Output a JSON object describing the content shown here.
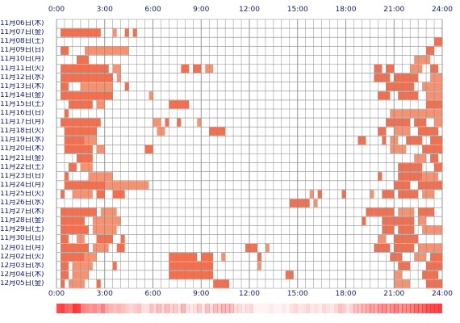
{
  "axis": {
    "hour_labels": [
      "0:00",
      "3:00",
      "6:00",
      "9:00",
      "12:00",
      "15:00",
      "18:00",
      "21:00",
      "24:00"
    ]
  },
  "accent_color": "#f2704f",
  "secondary_color": "#f59272",
  "grid_color": "#8c8c8c",
  "heat_color": "#ff2b2b",
  "days": [
    {
      "label": "11月06日(木)",
      "segments": []
    },
    {
      "label": "11月07日(金)",
      "segments": [
        [
          0.25,
          2.75
        ],
        [
          3.5,
          3.75
        ],
        [
          4.25,
          4.5
        ],
        [
          4.75,
          5.0
        ]
      ]
    },
    {
      "label": "11月08日(土)",
      "segments": [
        [
          23.5,
          24.0
        ]
      ]
    },
    {
      "label": "11月09日(日)",
      "segments": [
        [
          0.25,
          0.75
        ],
        [
          1.75,
          4.5
        ],
        [
          23.0,
          23.5
        ]
      ]
    },
    {
      "label": "11月10日(月)",
      "segments": [
        [
          1.25,
          2.0
        ],
        [
          22.25,
          23.25
        ]
      ]
    },
    {
      "label": "11月11日(火)",
      "segments": [
        [
          0.25,
          3.25
        ],
        [
          3.5,
          4.0
        ],
        [
          7.75,
          8.25
        ],
        [
          8.5,
          9.0
        ],
        [
          9.25,
          9.75
        ],
        [
          19.75,
          20.25
        ],
        [
          20.5,
          21.0
        ],
        [
          22.0,
          22.75
        ],
        [
          23.25,
          23.75
        ]
      ]
    },
    {
      "label": "11月12日(水)",
      "segments": [
        [
          0.25,
          3.5
        ],
        [
          3.75,
          4.0
        ],
        [
          19.75,
          20.75
        ],
        [
          21.0,
          22.5
        ],
        [
          23.25,
          24.0
        ]
      ]
    },
    {
      "label": "11月13日(木)",
      "segments": [
        [
          0.25,
          0.75
        ],
        [
          1.5,
          3.5
        ],
        [
          4.25,
          4.5
        ],
        [
          20.5,
          22.25
        ],
        [
          22.75,
          24.0
        ]
      ]
    },
    {
      "label": "11月14日(金)",
      "segments": [
        [
          0.25,
          3.5
        ],
        [
          5.75,
          6.0
        ],
        [
          20.0,
          20.75
        ],
        [
          21.25,
          22.5
        ],
        [
          23.0,
          24.0
        ]
      ]
    },
    {
      "label": "11月15日(土)",
      "segments": [
        [
          0.75,
          2.25
        ],
        [
          2.5,
          3.0
        ],
        [
          7.0,
          8.25
        ],
        [
          23.0,
          24.0
        ]
      ]
    },
    {
      "label": "11月16日(日)",
      "segments": [
        [
          0.5,
          0.75
        ],
        [
          20.75,
          24.0
        ]
      ]
    },
    {
      "label": "11月17日(月)",
      "segments": [
        [
          0.25,
          2.75
        ],
        [
          6.0,
          6.5
        ],
        [
          6.75,
          7.0
        ],
        [
          7.5,
          7.75
        ],
        [
          8.75,
          9.0
        ],
        [
          20.5,
          22.0
        ],
        [
          22.25,
          23.0
        ],
        [
          23.5,
          24.0
        ]
      ]
    },
    {
      "label": "11月18日(火)",
      "segments": [
        [
          0.5,
          2.5
        ],
        [
          6.25,
          6.75
        ],
        [
          9.5,
          10.5
        ],
        [
          20.0,
          20.5
        ],
        [
          21.0,
          22.0
        ],
        [
          22.5,
          23.75
        ]
      ]
    },
    {
      "label": "11月19日(水)",
      "segments": [
        [
          0.5,
          1.75
        ],
        [
          1.75,
          2.5
        ],
        [
          18.75,
          19.25
        ],
        [
          20.25,
          20.5
        ],
        [
          20.75,
          21.25
        ],
        [
          21.75,
          22.75
        ],
        [
          23.25,
          24.0
        ]
      ]
    },
    {
      "label": "11月20日(木)",
      "segments": [
        [
          0.5,
          2.25
        ],
        [
          2.5,
          3.0
        ],
        [
          5.5,
          5.75
        ],
        [
          5.75,
          6.0
        ],
        [
          20.75,
          21.75
        ],
        [
          22.75,
          24.0
        ]
      ]
    },
    {
      "label": "11月21日(金)",
      "segments": [
        [
          1.25,
          2.25
        ],
        [
          22.25,
          23.0
        ],
        [
          23.25,
          23.75
        ]
      ]
    },
    {
      "label": "11月22日(土)",
      "segments": [
        [
          0.75,
          1.25
        ],
        [
          1.5,
          2.25
        ],
        [
          21.25,
          22.75
        ],
        [
          23.5,
          24.0
        ]
      ]
    },
    {
      "label": "11月23日(日)",
      "segments": [
        [
          0.5,
          0.75
        ],
        [
          2.0,
          3.5
        ],
        [
          20.0,
          20.25
        ],
        [
          21.25,
          22.75
        ],
        [
          22.75,
          23.75
        ]
      ]
    },
    {
      "label": "11月24日(月)",
      "segments": [
        [
          0.5,
          3.0
        ],
        [
          3.0,
          5.75
        ],
        [
          21.0,
          22.0
        ],
        [
          22.5,
          24.0
        ]
      ]
    },
    {
      "label": "11月25日(火)",
      "segments": [
        [
          0.25,
          0.5
        ],
        [
          1.0,
          2.25
        ],
        [
          2.5,
          3.0
        ],
        [
          3.5,
          4.25
        ],
        [
          15.75,
          16.0
        ],
        [
          16.25,
          16.5
        ],
        [
          17.75,
          18.0
        ],
        [
          19.5,
          19.75
        ],
        [
          20.25,
          21.0
        ],
        [
          21.25,
          22.5
        ],
        [
          22.75,
          23.5
        ]
      ]
    },
    {
      "label": "11月26日(水)",
      "segments": [
        [
          14.5,
          15.75
        ],
        [
          16.0,
          16.25
        ]
      ]
    },
    {
      "label": "11月27日(木)",
      "segments": [
        [
          0.25,
          2.5
        ],
        [
          2.75,
          3.75
        ],
        [
          19.25,
          19.75
        ],
        [
          19.75,
          21.0
        ],
        [
          21.25,
          22.25
        ],
        [
          22.5,
          23.5
        ]
      ]
    },
    {
      "label": "11月28日(金)",
      "segments": [
        [
          0.25,
          1.75
        ],
        [
          2.25,
          4.0
        ],
        [
          19.0,
          19.25
        ],
        [
          20.25,
          22.25
        ],
        [
          22.5,
          23.0
        ]
      ]
    },
    {
      "label": "11月29日(土)",
      "segments": [
        [
          0.25,
          2.0
        ],
        [
          2.25,
          3.75
        ],
        [
          20.25,
          21.0
        ],
        [
          21.25,
          22.25
        ],
        [
          22.75,
          24.0
        ]
      ]
    },
    {
      "label": "11月30日(日)",
      "segments": [
        [
          0.25,
          0.75
        ],
        [
          1.25,
          1.75
        ],
        [
          2.5,
          3.5
        ],
        [
          4.0,
          4.25
        ],
        [
          20.0,
          20.5
        ],
        [
          21.0,
          22.5
        ]
      ]
    },
    {
      "label": "12月01日(月)",
      "segments": [
        [
          0.25,
          2.0
        ],
        [
          2.25,
          3.25
        ],
        [
          3.75,
          4.25
        ],
        [
          11.75,
          12.5
        ],
        [
          13.0,
          13.25
        ],
        [
          19.75,
          20.75
        ],
        [
          21.0,
          22.25
        ],
        [
          22.5,
          24.0
        ]
      ]
    },
    {
      "label": "12月02日(火)",
      "segments": [
        [
          0.25,
          1.75
        ],
        [
          1.75,
          2.5
        ],
        [
          7.0,
          8.75
        ],
        [
          9.0,
          9.75
        ],
        [
          10.25,
          10.5
        ],
        [
          12.5,
          12.75
        ],
        [
          20.75,
          21.5
        ],
        [
          22.25,
          23.0
        ],
        [
          23.25,
          24.0
        ]
      ]
    },
    {
      "label": "12月03日(水)",
      "segments": [
        [
          0.25,
          0.75
        ],
        [
          1.0,
          2.25
        ],
        [
          3.5,
          3.75
        ],
        [
          7.0,
          9.75
        ],
        [
          12.5,
          12.75
        ],
        [
          21.25,
          22.0
        ],
        [
          23.0,
          24.0
        ]
      ]
    },
    {
      "label": "12月04日(木)",
      "segments": [
        [
          0.25,
          0.75
        ],
        [
          1.0,
          2.0
        ],
        [
          7.0,
          9.75
        ],
        [
          14.25,
          14.75
        ],
        [
          21.0,
          21.5
        ],
        [
          22.75,
          23.75
        ]
      ]
    },
    {
      "label": "12月05日(金)",
      "segments": [
        [
          0.25,
          0.5
        ],
        [
          0.75,
          1.75
        ],
        [
          2.5,
          2.75
        ],
        [
          9.75,
          10.75
        ],
        [
          21.0,
          22.0
        ],
        [
          23.0,
          24.0
        ]
      ]
    }
  ],
  "activity_heat": [
    0.85,
    0.9,
    0.75,
    0.7,
    0.95,
    0.9,
    0.6,
    0.55,
    0.5,
    0.55,
    0.45,
    0.6,
    0.4,
    0.35,
    0.3,
    0.35,
    0.3,
    0.25,
    0.2,
    0.25,
    0.3,
    0.15,
    0.15,
    0.3,
    0.2,
    0.3,
    0.2,
    0.3,
    0.2,
    0.25,
    0.15,
    0.35,
    0.15,
    0.1,
    0.15,
    0.25,
    0.1,
    0.3,
    0.15,
    0.3,
    0.25,
    0.35,
    0.3,
    0.3,
    0.15,
    0.15,
    0.1,
    0.15,
    0.2,
    0.05,
    0.05,
    0.05,
    0.05,
    0.1,
    0.05,
    0.05,
    0.1,
    0.05,
    0.15,
    0.2,
    0.1,
    0.15,
    0.2,
    0.1,
    0.15,
    0.1,
    0.2,
    0.15,
    0.1,
    0.2,
    0.3,
    0.25,
    0.1,
    0.2,
    0.3,
    0.3,
    0.35,
    0.4,
    0.45,
    0.4,
    0.5,
    0.55,
    0.45,
    0.55,
    0.6,
    0.5,
    0.55,
    0.55,
    0.6,
    0.7,
    0.65,
    0.75,
    0.8,
    0.85,
    0.85,
    0.9
  ]
}
